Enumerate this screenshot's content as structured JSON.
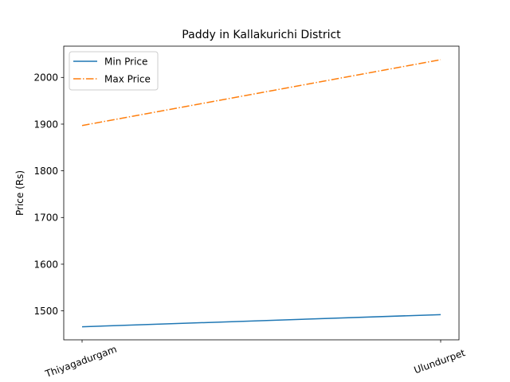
{
  "chart_data": {
    "type": "line",
    "title": "Paddy in Kallakurichi District",
    "xlabel": "",
    "ylabel": "Price (Rs)",
    "categories": [
      "Thiyagadurgam",
      "Ulundurpet"
    ],
    "series": [
      {
        "name": "Min Price",
        "values": [
          1466,
          1492
        ],
        "color": "#1f77b4",
        "line_style": "solid"
      },
      {
        "name": "Max Price",
        "values": [
          1897,
          2038
        ],
        "color": "#ff7f0e",
        "line_style": "dash-dot"
      }
    ],
    "ylim": [
      1438,
      2067
    ],
    "yticks": [
      1500,
      1600,
      1700,
      1800,
      1900,
      2000
    ],
    "xtick_rotation": -20,
    "grid": false,
    "legend": {
      "placement": "top-left",
      "frame": true
    }
  }
}
